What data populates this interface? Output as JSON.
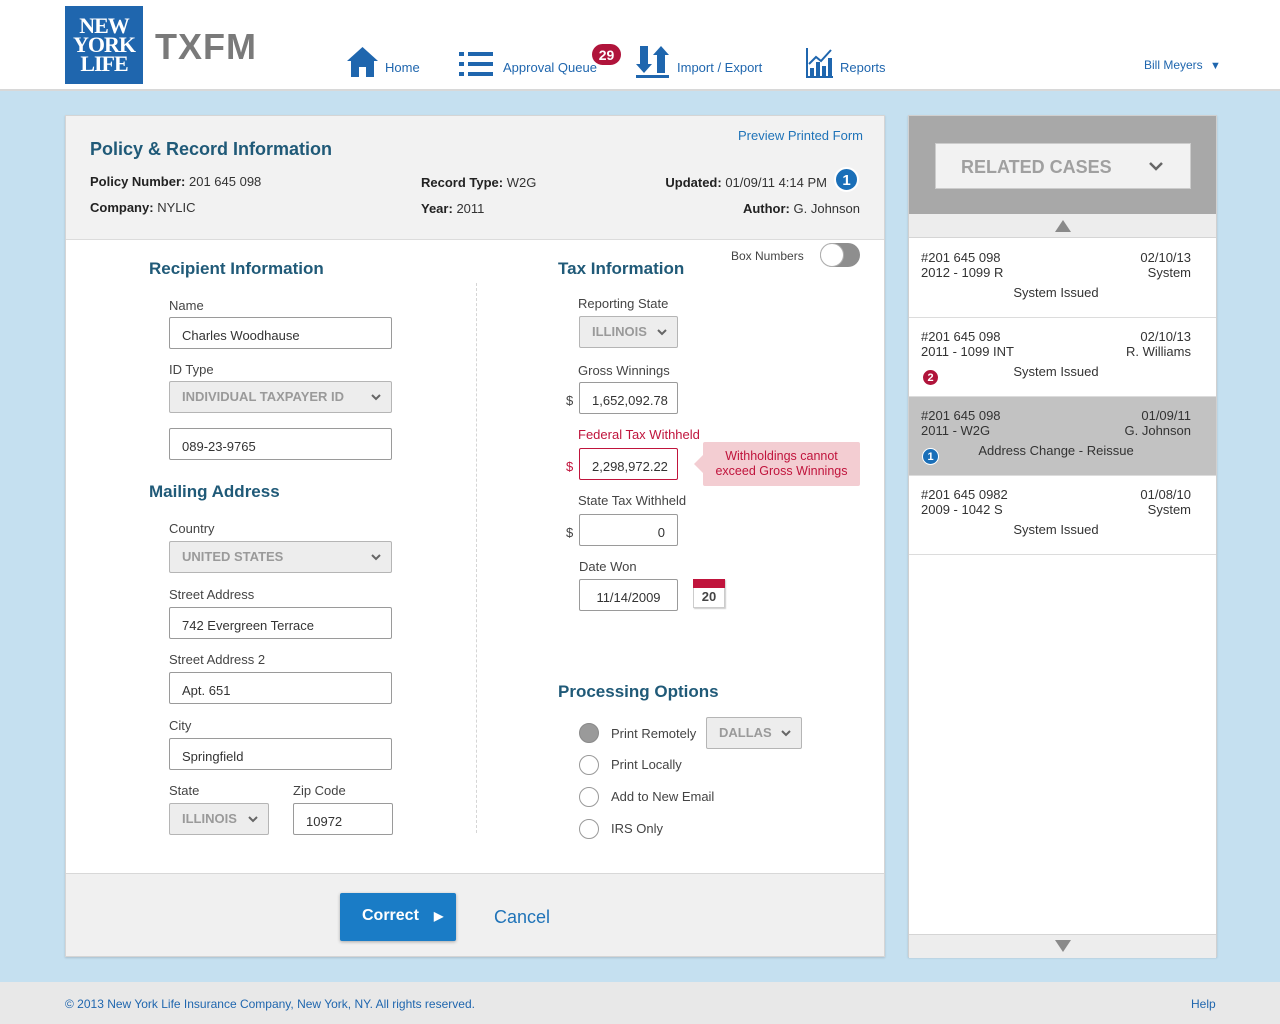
{
  "header": {
    "logo": [
      "NEW",
      "YORK",
      "LIFE"
    ],
    "app_title": "TXFM",
    "nav": {
      "home": "Home",
      "approval_queue": "Approval Queue",
      "approval_count": "29",
      "import_export": "Import / Export",
      "reports": "Reports"
    },
    "user": "Bill Meyers"
  },
  "policy": {
    "preview_link": "Preview Printed Form",
    "title": "Policy & Record Information",
    "policy_number_label": "Policy Number:",
    "policy_number": "201 645 098",
    "company_label": "Company:",
    "company": "NYLIC",
    "record_type_label": "Record Type:",
    "record_type": "W2G",
    "year_label": "Year:",
    "year": "2011",
    "updated_label": "Updated:",
    "updated": "01/09/11  4:14 PM",
    "updated_badge": "1",
    "author_label": "Author:",
    "author": "G. Johnson"
  },
  "recipient": {
    "title": "Recipient Information",
    "name_label": "Name",
    "name": "Charles Woodhause",
    "id_type_label": "ID Type",
    "id_type": "INDIVIDUAL TAXPAYER ID",
    "id_value": "089-23-9765"
  },
  "mailing": {
    "title": "Mailing Address",
    "country_label": "Country",
    "country": "UNITED STATES",
    "street_label": "Street Address",
    "street": "742 Evergreen Terrace",
    "street2_label": "Street Address 2",
    "street2": "Apt. 651",
    "city_label": "City",
    "city": "Springfield",
    "state_label": "State",
    "state": "ILLINOIS",
    "zip_label": "Zip Code",
    "zip": "10972"
  },
  "tax": {
    "title": "Tax Information",
    "box_numbers_label": "Box Numbers",
    "reporting_state_label": "Reporting State",
    "reporting_state": "ILLINOIS",
    "gross_label": "Gross Winnings",
    "gross": "1,652,092.78",
    "federal_label": "Federal Tax Withheld",
    "federal": "2,298,972.22",
    "federal_error": "Withholdings cannot exceed Gross Winnings",
    "state_withheld_label": "State Tax Withheld",
    "state_withheld": "0",
    "date_won_label": "Date Won",
    "date_won": "11/14/2009",
    "calendar_day": "20",
    "currency": "$"
  },
  "processing": {
    "title": "Processing Options",
    "options": [
      "Print Remotely",
      "Print Locally",
      "Add to New Email",
      "IRS Only"
    ],
    "location": "DALLAS"
  },
  "actions": {
    "correct": "Correct",
    "cancel": "Cancel"
  },
  "related": {
    "title": "RELATED CASES",
    "cases": [
      {
        "number": "#201 645 098",
        "type": "2012 - 1099 R",
        "date": "02/10/13",
        "by": "System",
        "status": "System Issued",
        "badge": ""
      },
      {
        "number": "#201 645 098",
        "type": "2011 - 1099 INT",
        "date": "02/10/13",
        "by": "R. Williams",
        "status": "System Issued",
        "badge": "2"
      },
      {
        "number": "#201 645 098",
        "type": "2011 - W2G",
        "date": "01/09/11",
        "by": "G. Johnson",
        "status": "Address Change - Reissue",
        "badge": "1"
      },
      {
        "number": "#201 645 0982",
        "type": "2009 - 1042 S",
        "date": "01/08/10",
        "by": "System",
        "status": "System Issued",
        "badge": ""
      }
    ]
  },
  "footer": {
    "copyright": "© 2013 New York Life Insurance Company, New York, NY. All rights reserved.",
    "help": "Help"
  },
  "colors": {
    "brand_blue": "#1f66ae",
    "badge_red": "#b0143b",
    "error_red": "#c0143c",
    "error_bg": "#f3cdd2",
    "background": "#c5e0f0"
  }
}
